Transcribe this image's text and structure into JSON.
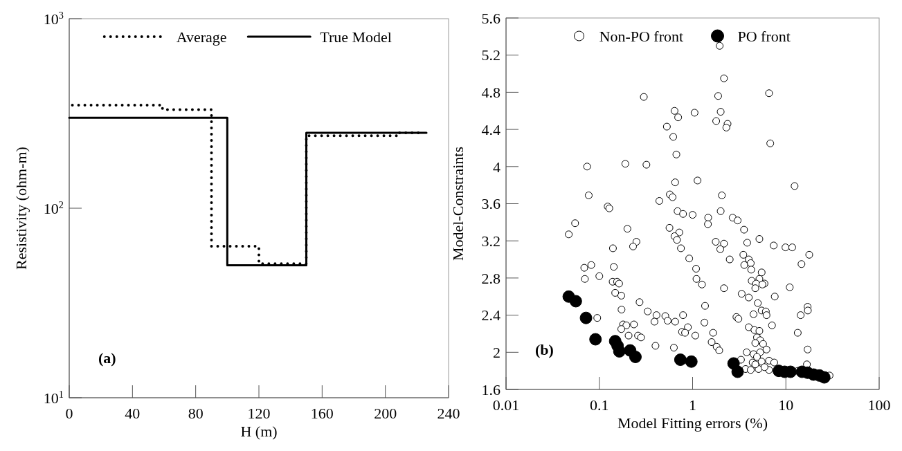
{
  "chart_data": [
    {
      "type": "step",
      "xlabel": "H (m)",
      "ylabel": "Resistivity (ohm-m)",
      "xlim": [
        0,
        240
      ],
      "xticks": [
        0,
        40,
        80,
        120,
        160,
        200,
        240
      ],
      "ylim": [
        10,
        1000
      ],
      "yticks": [
        {
          "value": 10,
          "label": "10$^{1}$"
        },
        {
          "value": 100,
          "label": "10$^{2}$"
        },
        {
          "value": 1000,
          "label": "10$^{3}$"
        }
      ],
      "log": "y",
      "grid": false,
      "legend": "top",
      "annotations": [
        "(a)"
      ],
      "series": [
        {
          "name": "Average",
          "color": "#000000",
          "line_style": "dotted",
          "x": [
            2,
            59,
            90,
            120,
            150,
            208,
            223
          ],
          "values": [
            350,
            331,
            63,
            51,
            241,
            250,
            250
          ]
        },
        {
          "name": "True Model",
          "color": "#000000",
          "line_style": "solid",
          "x": [
            0,
            100,
            150,
            226
          ],
          "values": [
            300,
            50,
            250,
            250
          ]
        }
      ]
    },
    {
      "type": "scatter",
      "xlabel": "Model Fitting errors (%)",
      "ylabel": "Model-Constraints",
      "xlim": [
        0.01,
        100
      ],
      "xticks": [
        0.01,
        0.1,
        1,
        10,
        100
      ],
      "ylim": [
        1.6,
        5.6
      ],
      "yticks": [
        1.6,
        2,
        2.4,
        2.8,
        3.2,
        3.6,
        4,
        4.4,
        4.8,
        5.2,
        5.6
      ],
      "log": "x",
      "grid": false,
      "legend": "top",
      "marker": "circle",
      "annotations": [
        "(b)"
      ],
      "series": [
        {
          "name": "Non-PO front",
          "color": "#ffffff",
          "x": [
            1.95,
            2.17,
            0.3,
            1.88,
            6.6,
            0.64,
            1.05,
            2.0,
            0.7,
            1.79,
            2.37,
            2.3,
            0.53,
            0.62,
            6.8,
            0.67,
            0.074,
            0.19,
            0.32,
            0.65,
            1.13,
            12.4,
            0.077,
            0.57,
            0.61,
            2.06,
            0.44,
            0.123,
            0.128,
            0.69,
            0.79,
            1.0,
            2.0,
            1.47,
            1.46,
            2.69,
            3.04,
            0.055,
            0.047,
            0.2,
            0.565,
            3.56,
            0.72,
            0.64,
            0.68,
            5.2,
            0.25,
            1.77,
            2.17,
            3.85,
            0.23,
            7.4,
            9.9,
            11.7,
            0.14,
            0.75,
            1.98,
            17.8,
            3.5,
            0.92,
            2.5,
            4.0,
            4.2,
            0.143,
            0.082,
            0.069,
            3.58,
            14.7,
            1.09,
            4.25,
            5.5,
            0.1,
            0.07,
            1.1,
            5.2,
            0.139,
            0.155,
            4.3,
            0.163,
            4.8,
            5.9,
            1.26,
            5.6,
            4.7,
            2.17,
            11.0,
            0.148,
            0.172,
            3.36,
            7.6,
            4.0,
            0.27,
            5.0,
            1.36,
            17.1,
            17.2,
            0.173,
            5.5,
            6.1,
            0.33,
            0.41,
            0.51,
            0.79,
            4.5,
            6.2,
            14.4,
            0.095,
            2.95,
            3.1,
            0.39,
            0.54,
            0.65,
            1.34,
            0.18,
            0.195,
            0.235,
            7.1,
            0.172,
            0.89,
            4.0,
            0.77,
            0.83,
            4.6,
            5.2,
            1.66,
            13.4,
            0.206,
            0.26,
            0.28,
            1.07,
            4.9,
            5.3,
            4.7,
            5.7,
            1.6,
            0.4,
            1.81,
            1.93,
            0.63,
            6.2,
            17.1,
            3.8,
            4.5,
            5.3,
            4.9,
            3.3,
            4.4,
            5.5,
            6.6,
            7.5,
            3.7,
            4.2,
            5.1,
            6.6,
            16.8,
            13.4,
            29.4,
            4.7,
            5.9
          ],
          "values": [
            5.3,
            4.95,
            4.75,
            4.76,
            4.79,
            4.6,
            4.58,
            4.59,
            4.53,
            4.49,
            4.46,
            4.42,
            4.43,
            4.32,
            4.25,
            4.13,
            4.0,
            4.03,
            4.02,
            3.83,
            3.85,
            3.79,
            3.69,
            3.7,
            3.67,
            3.69,
            3.63,
            3.57,
            3.55,
            3.52,
            3.49,
            3.48,
            3.52,
            3.45,
            3.38,
            3.45,
            3.42,
            3.39,
            3.27,
            3.33,
            3.34,
            3.32,
            3.29,
            3.25,
            3.21,
            3.22,
            3.19,
            3.19,
            3.17,
            3.18,
            3.14,
            3.15,
            3.13,
            3.13,
            3.12,
            3.12,
            3.11,
            3.05,
            3.05,
            3.01,
            3.0,
            3.0,
            2.96,
            2.92,
            2.94,
            2.91,
            2.94,
            2.95,
            2.9,
            2.89,
            2.86,
            2.82,
            2.79,
            2.79,
            2.79,
            2.76,
            2.76,
            2.77,
            2.74,
            2.74,
            2.74,
            2.73,
            2.73,
            2.69,
            2.69,
            2.7,
            2.64,
            2.61,
            2.63,
            2.6,
            2.59,
            2.54,
            2.53,
            2.5,
            2.49,
            2.45,
            2.46,
            2.45,
            2.44,
            2.44,
            2.4,
            2.39,
            2.4,
            2.41,
            2.4,
            2.4,
            2.37,
            2.38,
            2.36,
            2.33,
            2.34,
            2.33,
            2.32,
            2.3,
            2.29,
            2.3,
            2.29,
            2.25,
            2.27,
            2.27,
            2.22,
            2.21,
            2.24,
            2.23,
            2.21,
            2.21,
            2.18,
            2.18,
            2.16,
            2.18,
            2.16,
            2.13,
            2.1,
            2.09,
            2.11,
            2.07,
            2.06,
            2.02,
            2.05,
            2.03,
            2.03,
            2.0,
            1.98,
            2.0,
            1.95,
            1.92,
            1.89,
            1.9,
            1.91,
            1.89,
            1.82,
            1.81,
            1.82,
            1.81,
            1.87,
            1.8,
            1.75,
            1.87,
            1.84
          ]
        },
        {
          "name": "PO front",
          "color": "#000000",
          "x": [
            0.047,
            0.056,
            0.072,
            0.091,
            0.148,
            0.157,
            0.164,
            0.214,
            0.244,
            0.74,
            0.97,
            2.75,
            3.04,
            8.4,
            9.7,
            11.2,
            14.9,
            17.1,
            19.8,
            22.9,
            25.8
          ],
          "values": [
            2.6,
            2.55,
            2.37,
            2.14,
            2.12,
            2.07,
            2.01,
            2.02,
            1.95,
            1.92,
            1.9,
            1.88,
            1.79,
            1.8,
            1.79,
            1.79,
            1.79,
            1.78,
            1.76,
            1.75,
            1.73
          ]
        }
      ]
    }
  ]
}
